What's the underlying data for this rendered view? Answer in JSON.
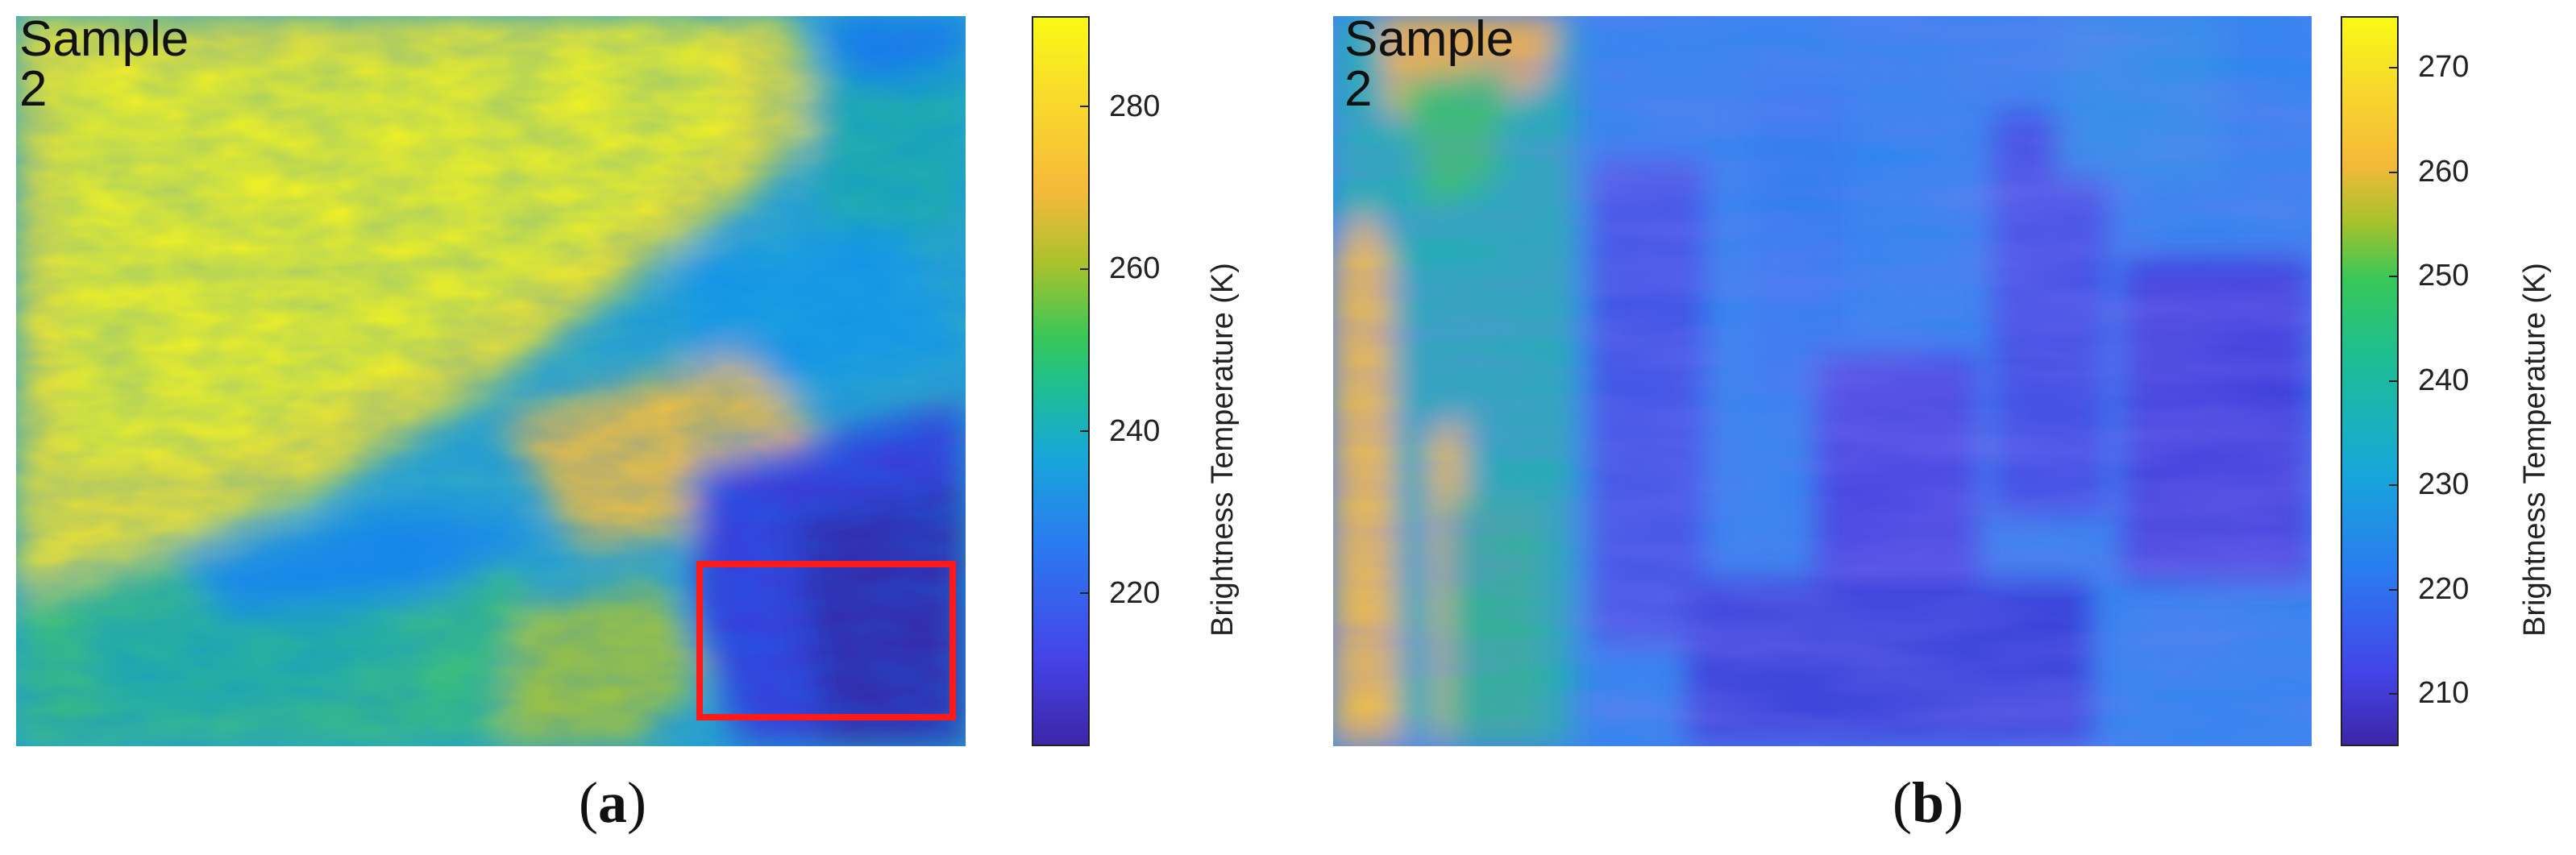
{
  "figure": {
    "panel_a": {
      "sample_label": "Sample 2",
      "caption_letter": "a",
      "colorbar_title": "Brightness Temperature (K)",
      "colorbar_ticks": [
        "280",
        "260",
        "240",
        "220"
      ]
    },
    "panel_b": {
      "sample_label": "Sample 2",
      "caption_letter": "b",
      "colorbar_title": "Brightness Temperature (K)",
      "colorbar_ticks": [
        "270",
        "260",
        "250",
        "240",
        "230",
        "220",
        "210"
      ]
    },
    "colors": {
      "inset_box": "#ff1a1a",
      "colormap": [
        "#3d26a8",
        "#4444e8",
        "#2a7cf0",
        "#17a8d8",
        "#20c08a",
        "#38c758",
        "#a8c22c",
        "#f5b93a",
        "#f8d82c",
        "#f9f916"
      ]
    }
  },
  "chart_data": [
    {
      "type": "heatmap",
      "title": "Sample 2",
      "xlabel": "",
      "ylabel": "",
      "colorbar_label": "Brightness Temperature (K)",
      "colorbar_range": [
        205,
        295
      ],
      "colorbar_ticks": [
        220,
        240,
        260,
        280
      ],
      "annotations": [
        "red rectangle marking zoomed region (lower-right)"
      ]
    },
    {
      "type": "heatmap",
      "title": "Sample 2",
      "xlabel": "",
      "ylabel": "",
      "colorbar_label": "Brightness Temperature (K)",
      "colorbar_range": [
        205,
        275
      ],
      "colorbar_ticks": [
        210,
        220,
        230,
        240,
        250,
        260,
        270
      ]
    }
  ]
}
